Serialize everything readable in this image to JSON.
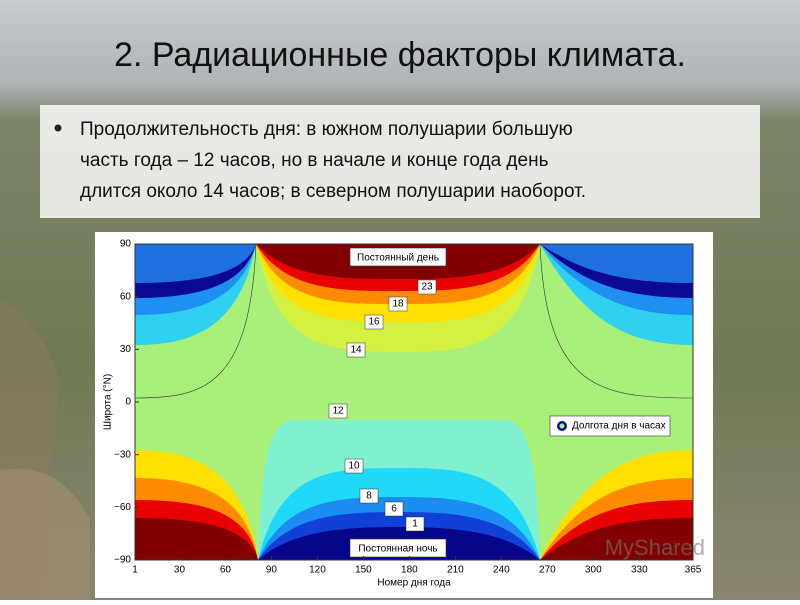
{
  "title": "2. Радиационные факторы климата.",
  "bullet": [
    "Продолжительность дня: в южном полушарии большую",
    "часть года – 12 часов, но в начале и конце года день",
    "длится около 14 часов; в северном полушарии наоборот."
  ],
  "figure": {
    "day_label": "Постоянный день",
    "night_label": "Постоянная ночь",
    "legend": "Долгота дня в часах",
    "ylabel": "Широта (°N)",
    "xlabel": "Номер дня года",
    "xticks": [
      "1",
      "30",
      "60",
      "90",
      "120",
      "150",
      "180",
      "210",
      "240",
      "270",
      "300",
      "330",
      "365"
    ],
    "yticks": [
      "90",
      "60",
      "30",
      "0",
      "−30",
      "−60",
      "−90"
    ],
    "contour_labels": [
      "23",
      "18",
      "16",
      "14",
      "12",
      "10",
      "8",
      "6",
      "1"
    ]
  },
  "watermark": "MyShared"
}
